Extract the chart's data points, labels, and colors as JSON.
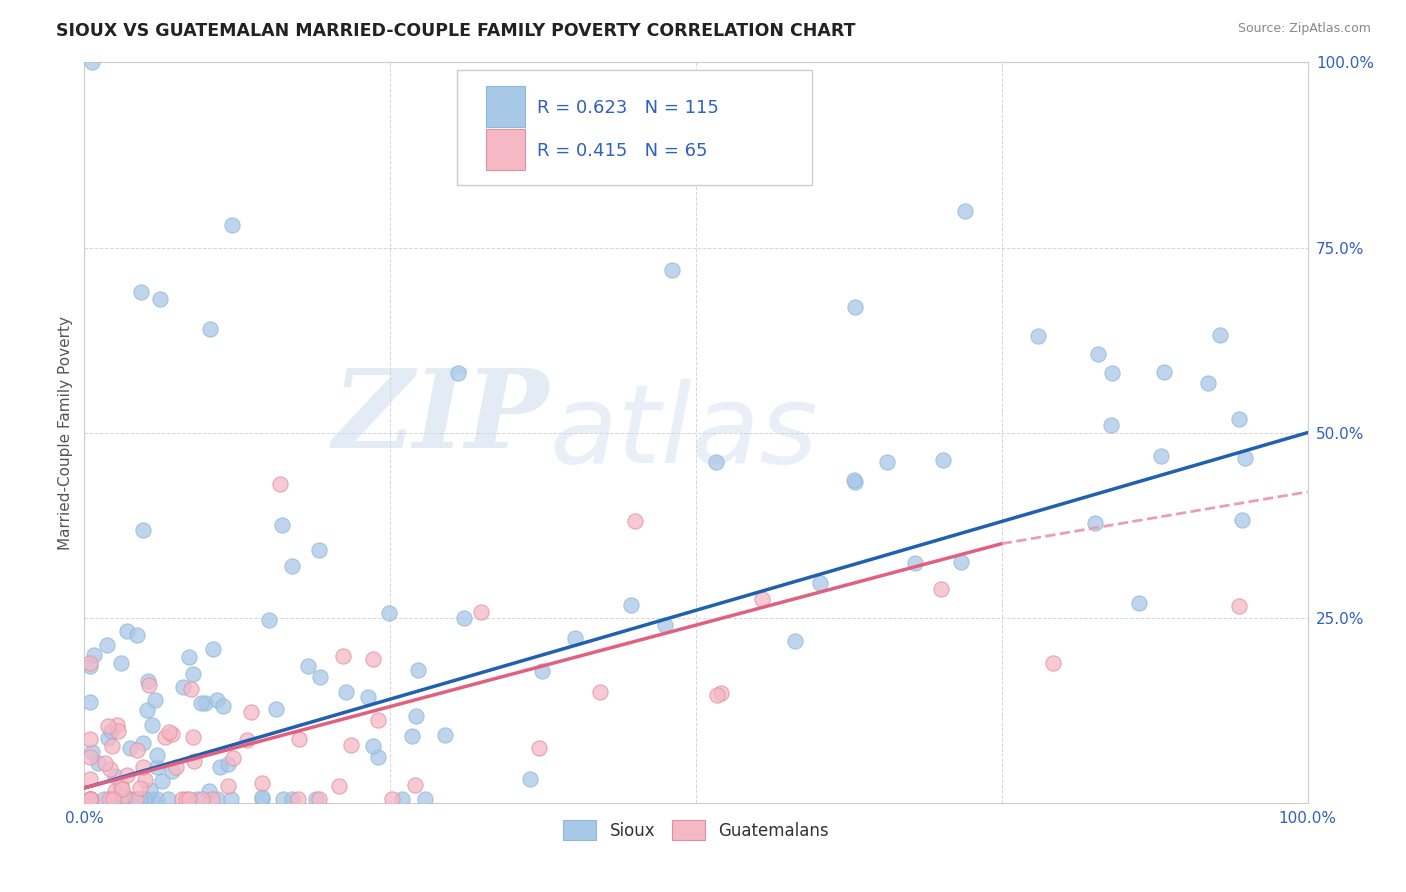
{
  "title": "SIOUX VS GUATEMALAN MARRIED-COUPLE FAMILY POVERTY CORRELATION CHART",
  "source": "Source: ZipAtlas.com",
  "ylabel": "Married-Couple Family Poverty",
  "watermark_zip": "ZIP",
  "watermark_atlas": "atlas",
  "sioux_R": 0.623,
  "sioux_N": 115,
  "guatemalan_R": 0.415,
  "guatemalan_N": 65,
  "sioux_color": "#a8c8e8",
  "guatemalan_color": "#f5b8c4",
  "sioux_line_color": "#2060b0",
  "guatemalan_line_color": "#e06080",
  "dashed_line_color": "#e8a0b0",
  "background_color": "#ffffff",
  "grid_color": "#cccccc",
  "title_color": "#222222",
  "legend_text_color": "#3060c0",
  "tick_color": "#3060c0",
  "ylabel_color": "#555555",
  "xlim": [
    0,
    100
  ],
  "ylim": [
    0,
    100
  ],
  "sioux_line_x0": 0,
  "sioux_line_y0": 2,
  "sioux_line_x1": 100,
  "sioux_line_y1": 50,
  "guat_line_x0": 0,
  "guat_line_y0": 2,
  "guat_line_x1": 75,
  "guat_line_y1": 35,
  "guat_dash_x0": 75,
  "guat_dash_y0": 35,
  "guat_dash_x1": 100,
  "guat_dash_y1": 42
}
